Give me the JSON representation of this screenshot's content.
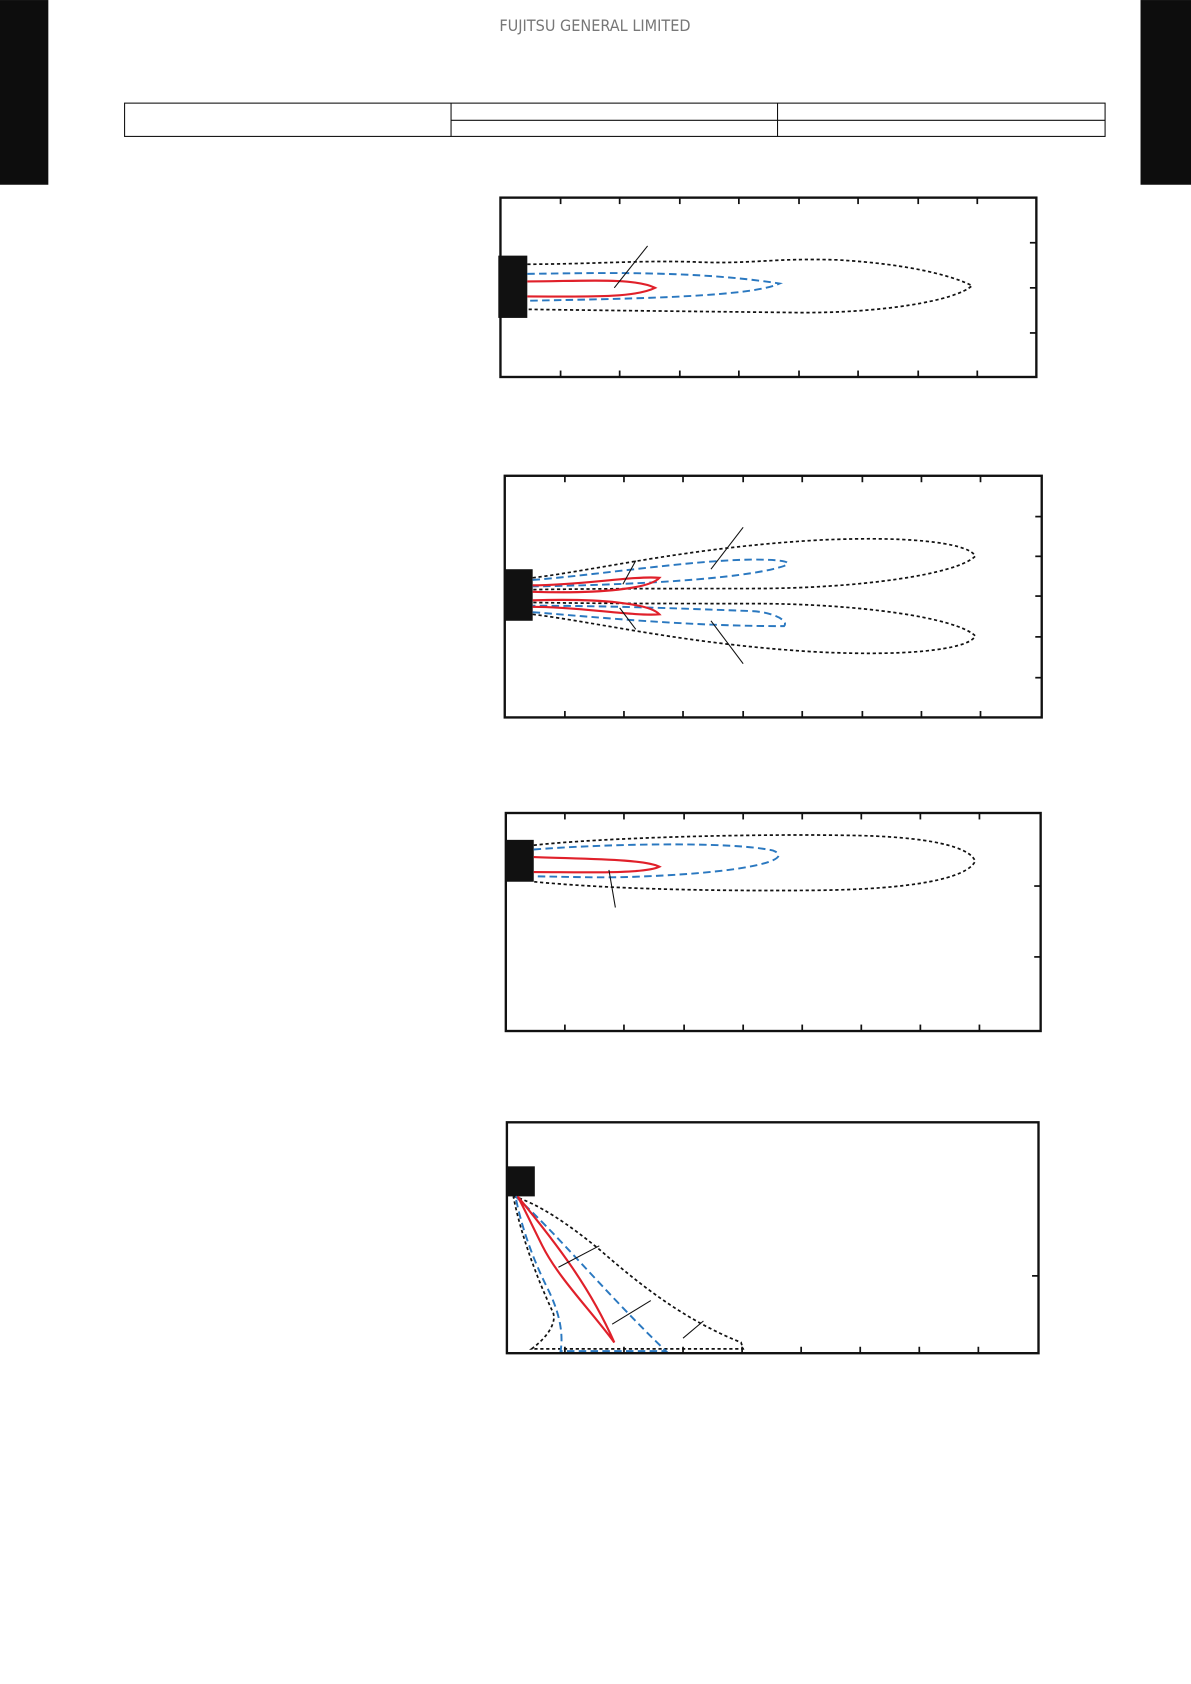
{
  "header": {
    "title": "FUJITSU GENERAL LIMITED"
  }
}
